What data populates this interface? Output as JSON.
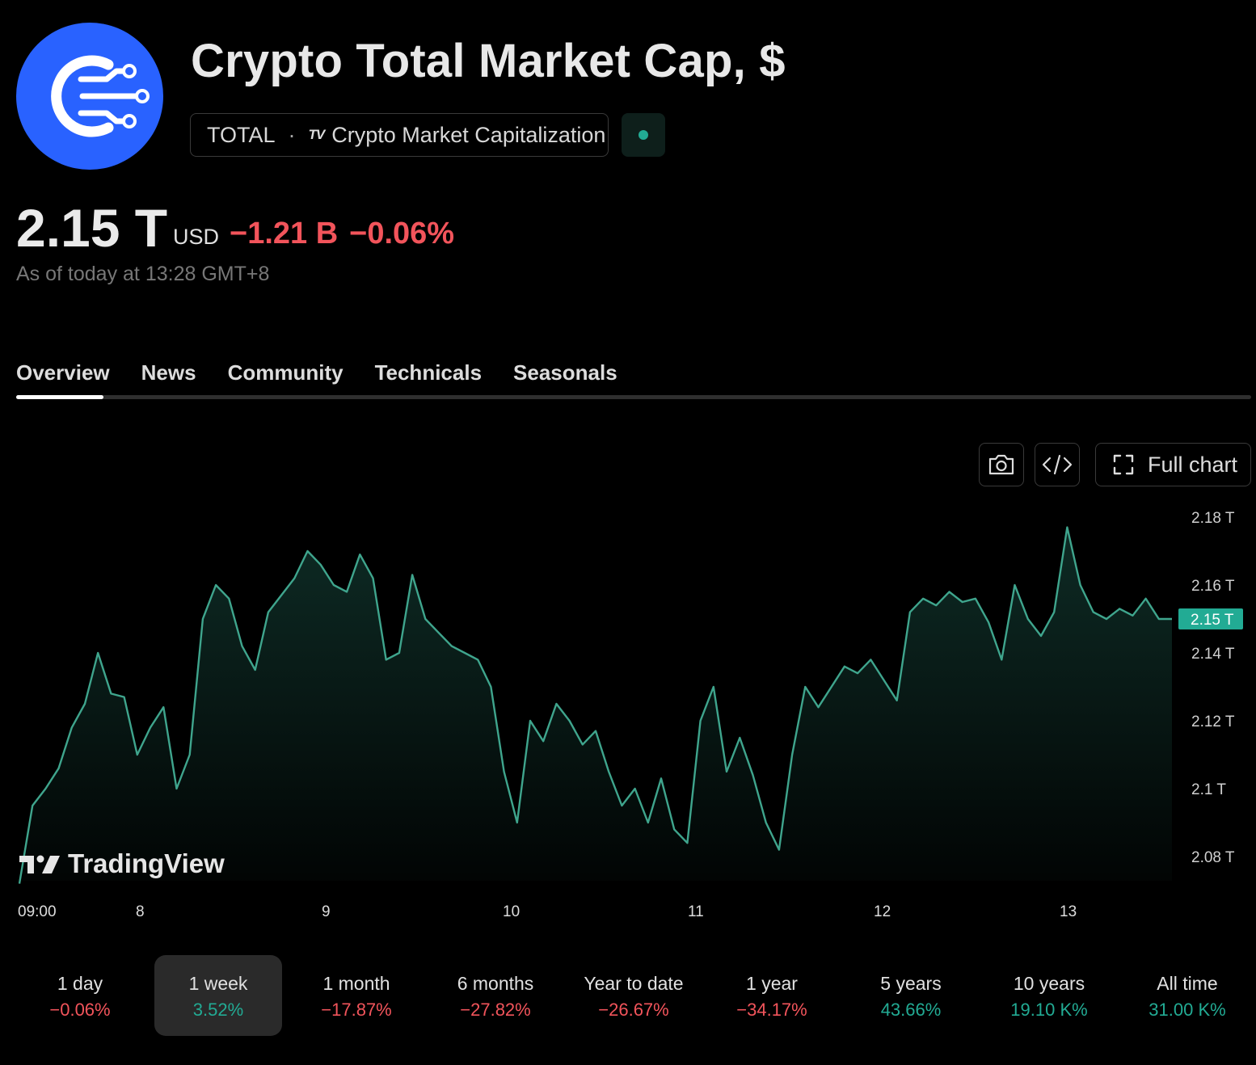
{
  "header": {
    "title": "Crypto Total Market Cap, $",
    "symbol": "TOTAL",
    "separator": "·",
    "source_mark": "TV",
    "source_name": "Crypto Market Capitalization",
    "logo_icon": "crypto-circuit-logo",
    "status_icon": "market-status-dot",
    "status_color": "#22ab94"
  },
  "quote": {
    "price": "2.15 T",
    "currency": "USD",
    "change_abs": "−1.21 B",
    "change_pct": "−0.06%",
    "change_color": "#f2545b",
    "as_of": "As of today at 13:28 GMT+8"
  },
  "tabs": [
    {
      "label": "Overview",
      "active": true
    },
    {
      "label": "News",
      "active": false
    },
    {
      "label": "Community",
      "active": false
    },
    {
      "label": "Technicals",
      "active": false
    },
    {
      "label": "Seasonals",
      "active": false
    }
  ],
  "chart_toolbar": {
    "snapshot_icon": "camera-icon",
    "embed_icon": "code-icon",
    "full_chart_icon": "fullscreen-icon",
    "full_chart_label": "Full chart"
  },
  "watermark": "TradingView",
  "chart_data": {
    "type": "area",
    "line_color": "#3fa58d",
    "y_ticks": [
      "2.18 T",
      "2.16 T",
      "2.14 T",
      "2.12 T",
      "2.1 T",
      "2.08 T"
    ],
    "x_ticks": [
      "09:00",
      "8",
      "9",
      "10",
      "11",
      "12",
      "13"
    ],
    "last_value_label": "2.15 T",
    "ylim": [
      2.07,
      2.18
    ],
    "values": [
      2.072,
      2.095,
      2.1,
      2.106,
      2.118,
      2.125,
      2.14,
      2.128,
      2.127,
      2.11,
      2.118,
      2.124,
      2.1,
      2.11,
      2.15,
      2.16,
      2.156,
      2.142,
      2.135,
      2.152,
      2.157,
      2.162,
      2.17,
      2.166,
      2.16,
      2.158,
      2.169,
      2.162,
      2.138,
      2.14,
      2.163,
      2.15,
      2.146,
      2.142,
      2.14,
      2.138,
      2.13,
      2.105,
      2.09,
      2.12,
      2.114,
      2.125,
      2.12,
      2.113,
      2.117,
      2.105,
      2.095,
      2.1,
      2.09,
      2.103,
      2.088,
      2.084,
      2.12,
      2.13,
      2.105,
      2.115,
      2.104,
      2.09,
      2.082,
      2.11,
      2.13,
      2.124,
      2.13,
      2.136,
      2.134,
      2.138,
      2.132,
      2.126,
      2.152,
      2.156,
      2.154,
      2.158,
      2.155,
      2.156,
      2.149,
      2.138,
      2.16,
      2.15,
      2.145,
      2.152,
      2.177,
      2.16,
      2.152,
      2.15,
      2.153,
      2.151,
      2.156,
      2.15,
      2.15
    ]
  },
  "periods": [
    {
      "label": "1 day",
      "value": "−0.06%",
      "dir": "neg",
      "selected": false
    },
    {
      "label": "1 week",
      "value": "3.52%",
      "dir": "pos",
      "selected": true
    },
    {
      "label": "1 month",
      "value": "−17.87%",
      "dir": "neg",
      "selected": false
    },
    {
      "label": "6 months",
      "value": "−27.82%",
      "dir": "neg",
      "selected": false
    },
    {
      "label": "Year to date",
      "value": "−26.67%",
      "dir": "neg",
      "selected": false
    },
    {
      "label": "1 year",
      "value": "−34.17%",
      "dir": "neg",
      "selected": false
    },
    {
      "label": "5 years",
      "value": "43.66%",
      "dir": "pos",
      "selected": false
    },
    {
      "label": "10 years",
      "value": "19.10 K%",
      "dir": "pos",
      "selected": false
    },
    {
      "label": "All time",
      "value": "31.00 K%",
      "dir": "pos",
      "selected": false
    }
  ]
}
